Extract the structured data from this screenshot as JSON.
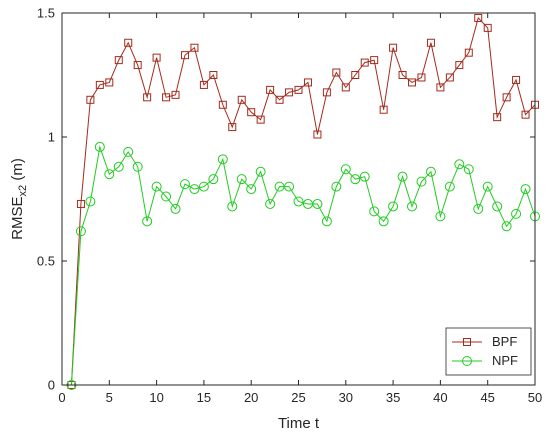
{
  "chart_data": {
    "type": "line",
    "xlabel": "Time t",
    "ylabel_main": "RMSE",
    "ylabel_sub": "x2",
    "ylabel_unit": " (m)",
    "xlim": [
      0,
      50
    ],
    "ylim": [
      0,
      1.5
    ],
    "xticks": [
      0,
      5,
      10,
      15,
      20,
      25,
      30,
      35,
      40,
      45,
      50
    ],
    "yticks": [
      0,
      0.5,
      1,
      1.5
    ],
    "ytick_labels": [
      "0",
      "0.5",
      "1",
      "1.5"
    ],
    "grid": false,
    "legend_position": "bottom-right",
    "x": [
      1,
      2,
      3,
      4,
      5,
      6,
      7,
      8,
      9,
      10,
      11,
      12,
      13,
      14,
      15,
      16,
      17,
      18,
      19,
      20,
      21,
      22,
      23,
      24,
      25,
      26,
      27,
      28,
      29,
      30,
      31,
      32,
      33,
      34,
      35,
      36,
      37,
      38,
      39,
      40,
      41,
      42,
      43,
      44,
      45,
      46,
      47,
      48,
      49,
      50
    ],
    "series": [
      {
        "name": "BPF",
        "color": "#a52a1c",
        "marker": "square",
        "values": [
          0,
          0.73,
          1.15,
          1.21,
          1.22,
          1.31,
          1.38,
          1.29,
          1.16,
          1.32,
          1.16,
          1.17,
          1.33,
          1.36,
          1.21,
          1.25,
          1.13,
          1.04,
          1.15,
          1.1,
          1.07,
          1.19,
          1.15,
          1.18,
          1.19,
          1.22,
          1.01,
          1.18,
          1.26,
          1.2,
          1.25,
          1.3,
          1.31,
          1.11,
          1.36,
          1.25,
          1.22,
          1.24,
          1.38,
          1.2,
          1.24,
          1.29,
          1.34,
          1.48,
          1.44,
          1.08,
          1.16,
          1.23,
          1.09,
          1.13
        ]
      },
      {
        "name": "NPF",
        "color": "#22cc22",
        "marker": "circle",
        "values": [
          0,
          0.62,
          0.74,
          0.96,
          0.85,
          0.88,
          0.94,
          0.88,
          0.66,
          0.8,
          0.76,
          0.71,
          0.81,
          0.79,
          0.8,
          0.83,
          0.91,
          0.72,
          0.83,
          0.79,
          0.86,
          0.73,
          0.8,
          0.8,
          0.74,
          0.73,
          0.73,
          0.66,
          0.8,
          0.87,
          0.83,
          0.84,
          0.7,
          0.66,
          0.72,
          0.84,
          0.72,
          0.82,
          0.86,
          0.68,
          0.8,
          0.89,
          0.87,
          0.71,
          0.8,
          0.72,
          0.64,
          0.69,
          0.79,
          0.68
        ]
      }
    ]
  }
}
